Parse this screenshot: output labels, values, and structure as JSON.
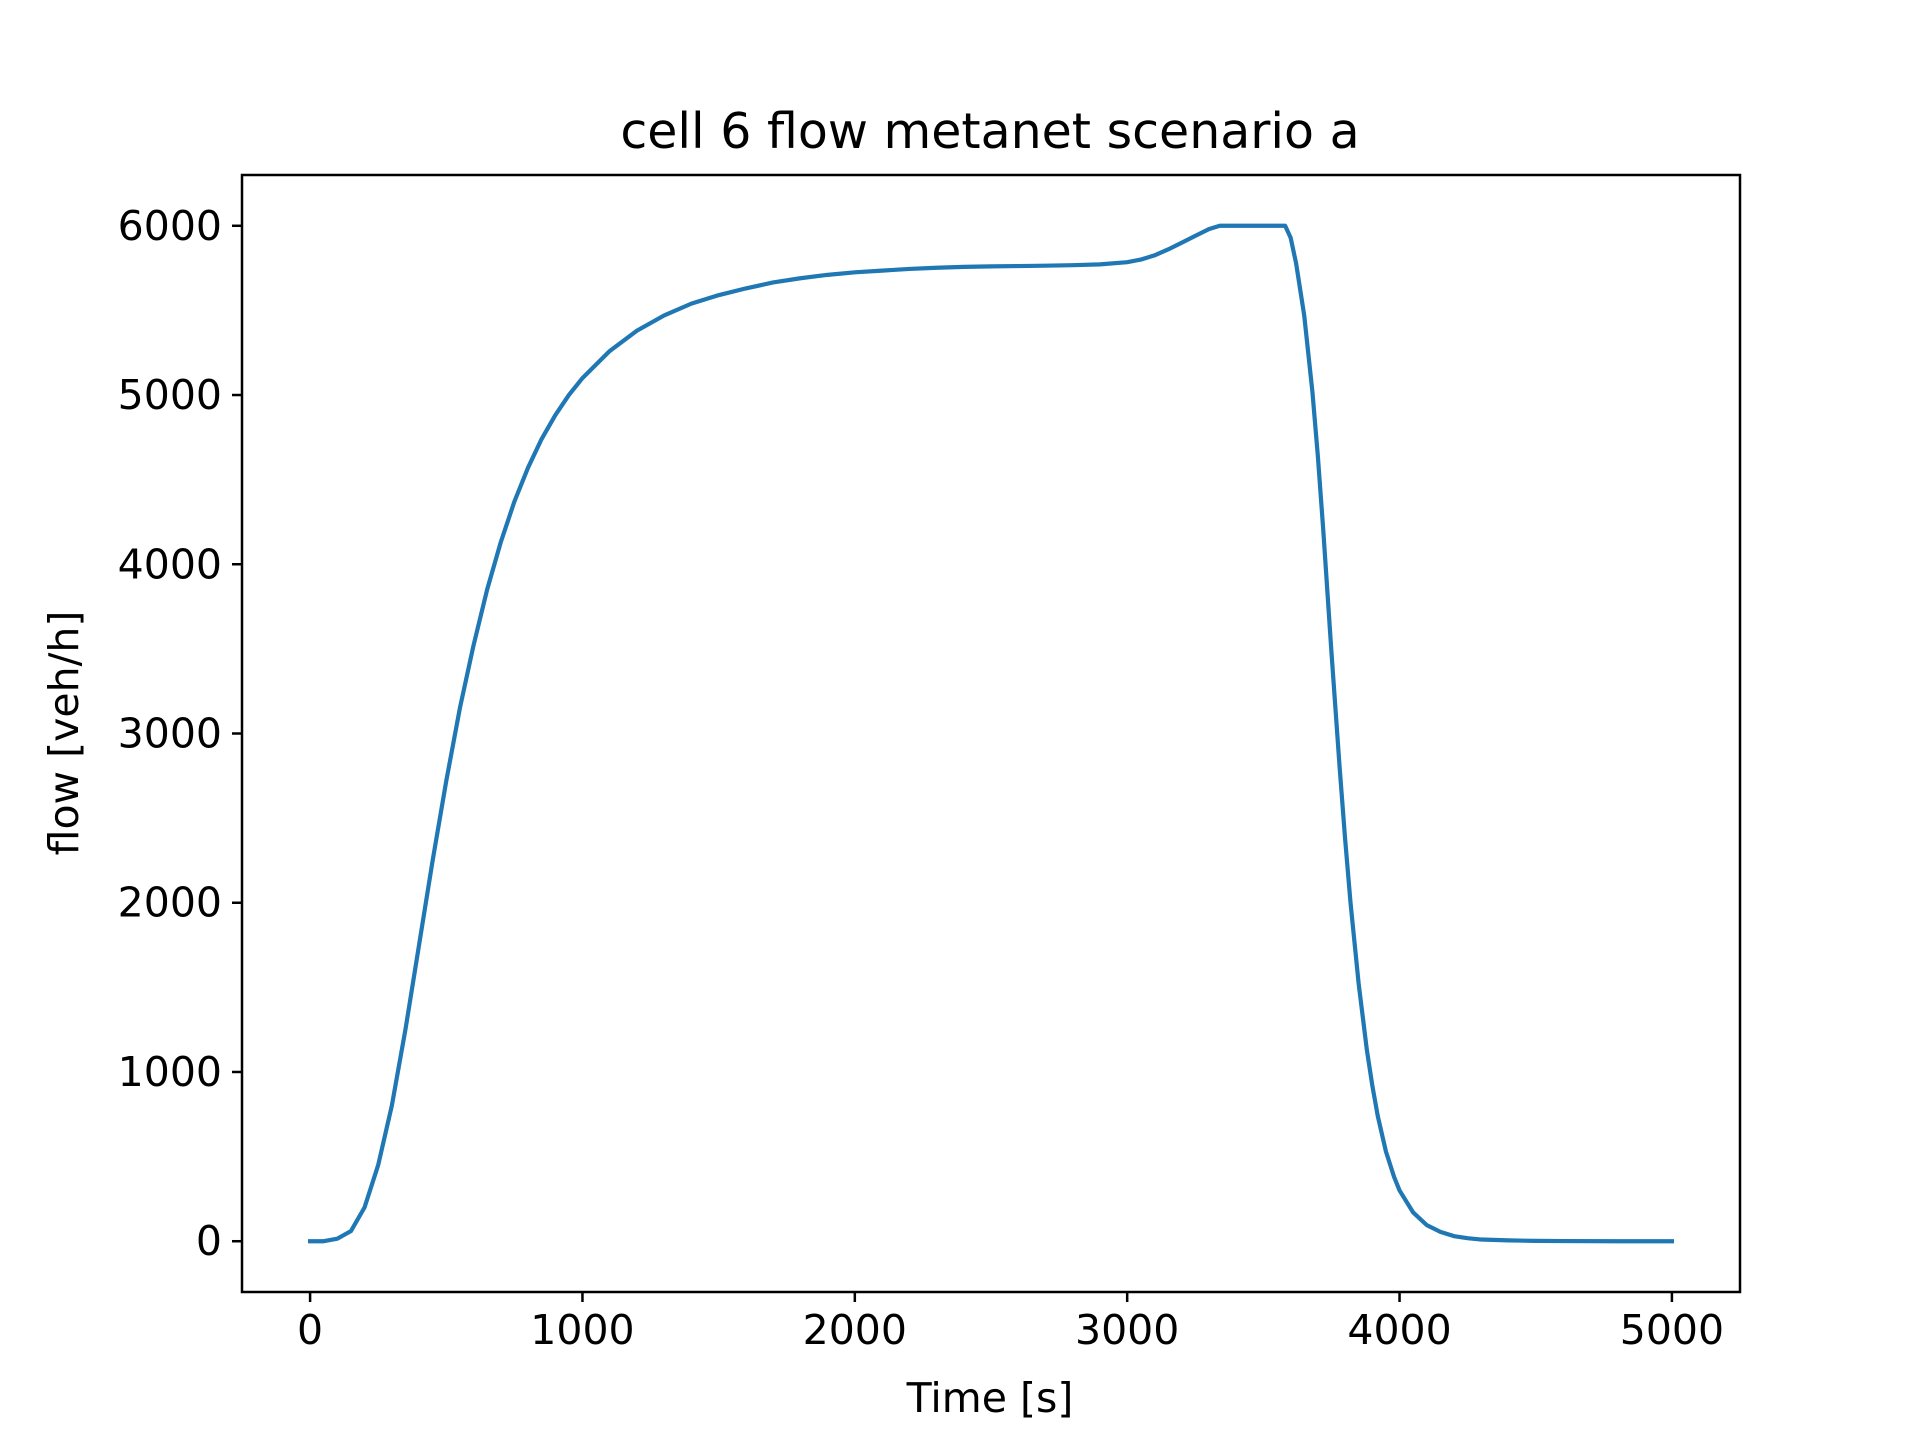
{
  "chart_data": {
    "type": "line",
    "title": "cell 6 flow metanet scenario a",
    "xlabel": "Time [s]",
    "ylabel": "flow [veh/h]",
    "xlim": [
      -250,
      5250
    ],
    "ylim": [
      -300,
      6300
    ],
    "x_ticks": [
      0,
      1000,
      2000,
      3000,
      4000,
      5000
    ],
    "x_tick_labels": [
      "0",
      "1000",
      "2000",
      "3000",
      "4000",
      "5000"
    ],
    "y_ticks": [
      0,
      1000,
      2000,
      3000,
      4000,
      5000,
      6000
    ],
    "y_tick_labels": [
      "0",
      "1000",
      "2000",
      "3000",
      "4000",
      "5000",
      "6000"
    ],
    "grid": false,
    "legend": "none",
    "line_color": "#1f77b4",
    "series": [
      {
        "x": [
          0,
          50,
          100,
          150,
          200,
          250,
          300,
          350,
          400,
          450,
          500,
          550,
          600,
          650,
          700,
          750,
          800,
          850,
          900,
          950,
          1000,
          1100,
          1200,
          1300,
          1400,
          1500,
          1600,
          1700,
          1800,
          1900,
          2000,
          2100,
          2200,
          2300,
          2400,
          2500,
          2600,
          2700,
          2800,
          2900,
          3000,
          3050,
          3100,
          3150,
          3200,
          3250,
          3300,
          3340,
          3400,
          3500,
          3580,
          3600,
          3620,
          3650,
          3680,
          3700,
          3720,
          3750,
          3780,
          3800,
          3820,
          3850,
          3880,
          3900,
          3920,
          3950,
          3980,
          4000,
          4050,
          4100,
          4150,
          4200,
          4250,
          4300,
          4400,
          4500,
          4600,
          4800,
          5000
        ],
        "y": [
          0,
          0,
          15,
          60,
          200,
          450,
          800,
          1250,
          1750,
          2250,
          2720,
          3150,
          3520,
          3850,
          4130,
          4370,
          4570,
          4740,
          4880,
          5000,
          5100,
          5260,
          5380,
          5470,
          5540,
          5590,
          5630,
          5665,
          5690,
          5710,
          5725,
          5735,
          5745,
          5752,
          5757,
          5760,
          5762,
          5764,
          5767,
          5772,
          5785,
          5800,
          5825,
          5860,
          5900,
          5940,
          5980,
          6000,
          6000,
          6000,
          6000,
          5930,
          5780,
          5470,
          5020,
          4640,
          4200,
          3480,
          2800,
          2380,
          2000,
          1520,
          1130,
          920,
          740,
          530,
          380,
          300,
          170,
          95,
          55,
          30,
          18,
          10,
          5,
          2,
          1,
          0,
          0
        ]
      }
    ]
  }
}
